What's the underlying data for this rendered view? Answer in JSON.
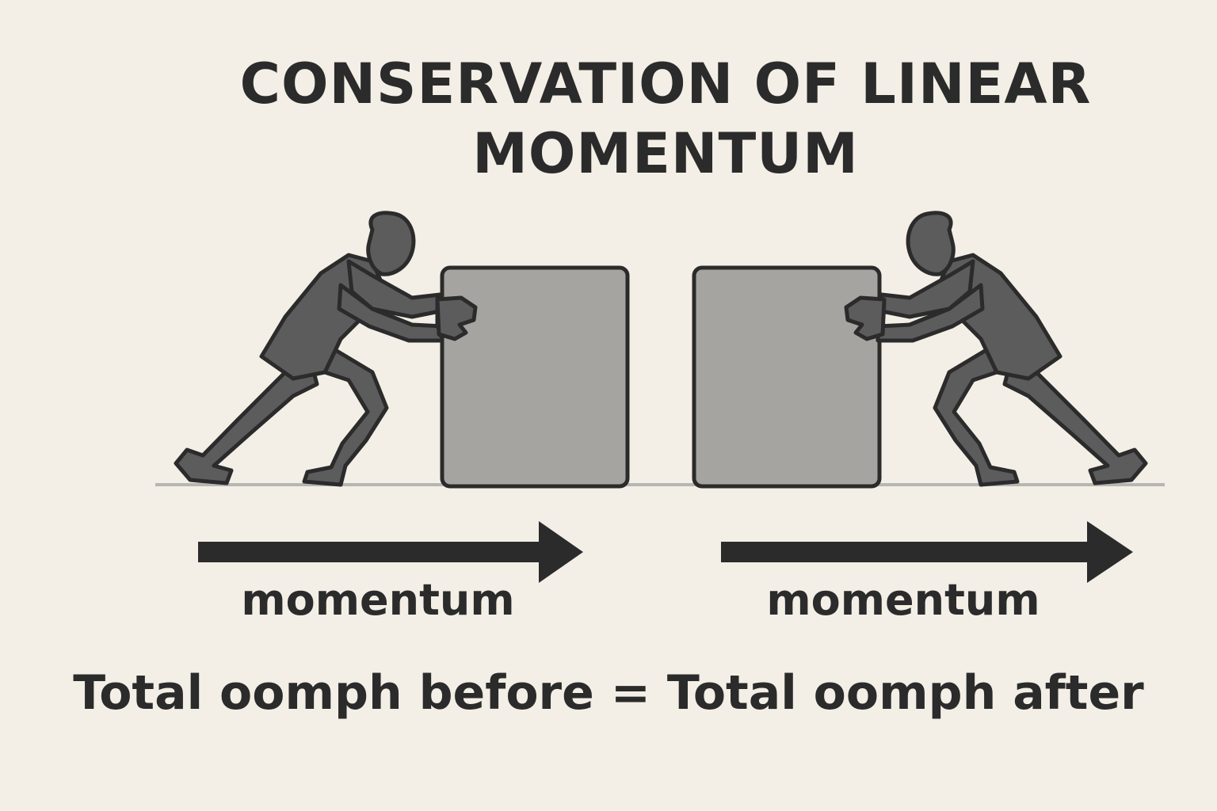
{
  "title": {
    "line1": "CONSERVATION OF LINEAR",
    "line2": "MOMENTUM"
  },
  "labels": {
    "left_momentum": "momentum",
    "right_momentum": "momentum"
  },
  "equation": "Total oomph before = Total oomph after",
  "icons": {
    "left_figure": "person-pushing-right-icon",
    "right_figure": "person-pushing-left-icon",
    "left_box": "box",
    "right_box": "box",
    "left_arrow": "arrow-right-icon",
    "right_arrow": "arrow-right-icon"
  },
  "colors": {
    "background": "#f3efe6",
    "figure": "#5a5a5a",
    "box": "#a6a4a0",
    "outline": "#2b2b2b",
    "ground": "#b8b6b2",
    "arrow": "#2b2b2b"
  }
}
